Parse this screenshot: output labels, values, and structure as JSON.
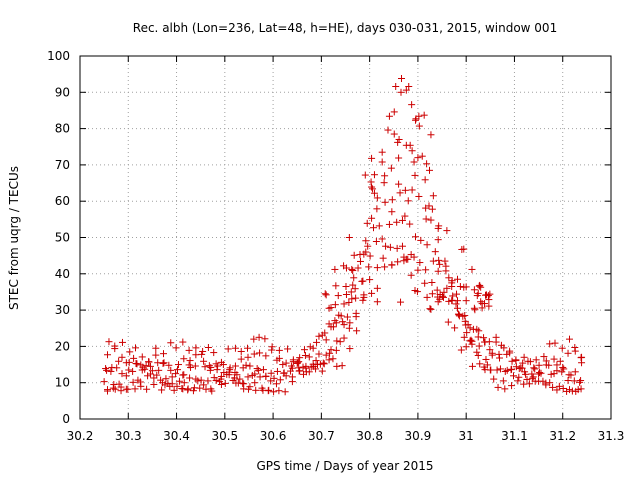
{
  "chart_data": {
    "type": "scatter",
    "title": "Rec. albh (Lon=236, Lat=48, h=HE), days 030-031, 2015, window 001",
    "xlabel": "GPS time / Days of year 2015",
    "ylabel": "STEC from uqrg / TECUs",
    "xlim": [
      30.2,
      31.3
    ],
    "ylim": [
      0,
      100
    ],
    "xticks": [
      "30.2",
      "30.3",
      "30.4",
      "30.5",
      "30.6",
      "30.7",
      "30.8",
      "30.9",
      "31",
      "31.1",
      "31.2",
      "31.3"
    ],
    "yticks": [
      "0",
      "10",
      "20",
      "30",
      "40",
      "50",
      "60",
      "70",
      "80",
      "90",
      "100"
    ],
    "grid": true,
    "marker": "+",
    "color": "#cc0000",
    "x": [],
    "y": []
  }
}
